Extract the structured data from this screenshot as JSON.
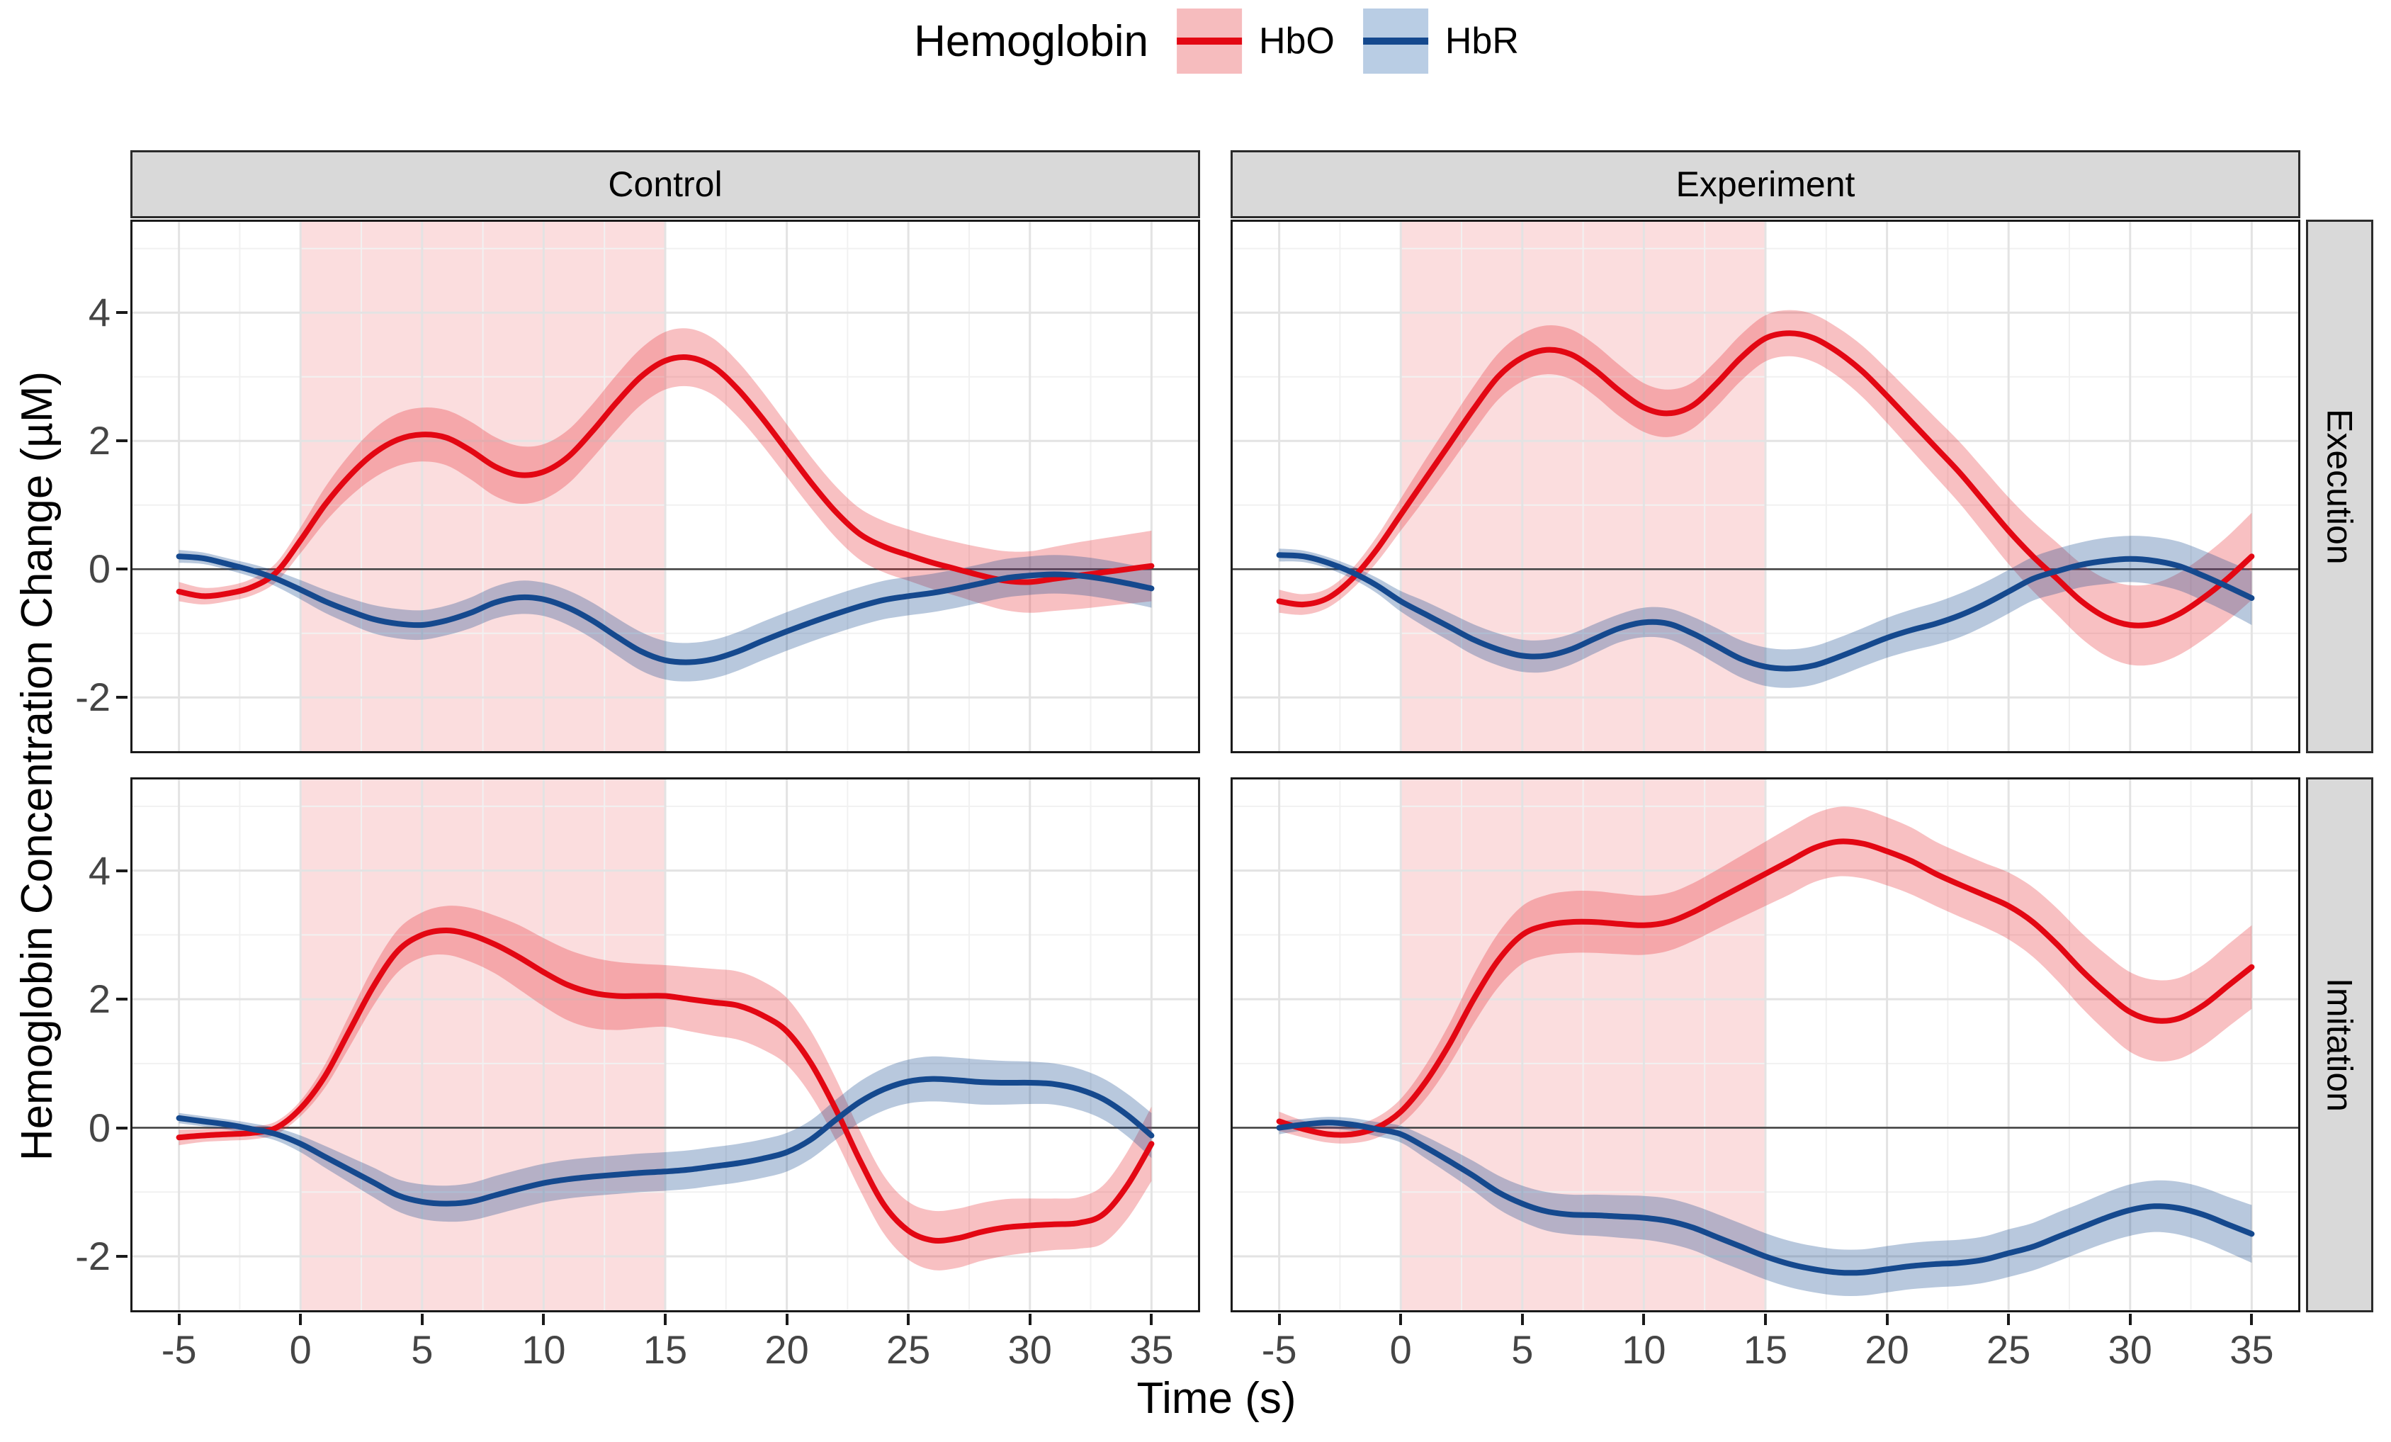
{
  "legend": {
    "title": "Hemoglobin",
    "items": [
      {
        "label": "HbO",
        "line_color": "#e30713",
        "fill_color": "#f6bcbe"
      },
      {
        "label": "HbR",
        "line_color": "#15498e",
        "fill_color": "#b9cde4"
      }
    ]
  },
  "facets": {
    "columns": [
      "Control",
      "Experiment"
    ],
    "rows": [
      "Execution",
      "Imitation"
    ]
  },
  "chart_data": {
    "type": "line",
    "x_label": "Time (s)",
    "y_label": "Hemoglobin Concentration Change (µM)",
    "xlim": [
      -7,
      37
    ],
    "ylim": [
      -2.87,
      5.45
    ],
    "x_ticks": [
      -5,
      0,
      5,
      10,
      15,
      20,
      25,
      30,
      35
    ],
    "x_minor": [
      -2.5,
      2.5,
      7.5,
      12.5,
      17.5,
      22.5,
      27.5,
      32.5
    ],
    "y_ticks": [
      4,
      2,
      0,
      -2
    ],
    "y_minor": [
      5,
      3,
      1,
      -1
    ],
    "zero_line": 0,
    "stimulus_band": {
      "from": 0,
      "to": 15,
      "fill": "rgba(231,28,35,0.15)"
    },
    "grid": {
      "major_color": "#e3e3e3",
      "minor_color": "#f1f1f1",
      "zero_color": "#404040"
    },
    "series_style": {
      "HbO": {
        "line": "#e30713",
        "fill": "rgba(231,28,35,0.28)"
      },
      "HbR": {
        "line": "#15498e",
        "fill": "rgba(21,73,142,0.30)"
      }
    },
    "t": [
      -5,
      -4,
      -3,
      -2,
      -1,
      0,
      1,
      2,
      3,
      4,
      5,
      6,
      7,
      8,
      9,
      10,
      11,
      12,
      13,
      14,
      15,
      16,
      17,
      18,
      19,
      20,
      21,
      22,
      23,
      24,
      25,
      26,
      27,
      28,
      29,
      30,
      31,
      32,
      33,
      34,
      35
    ],
    "panels": [
      {
        "row": "Execution",
        "col": "Control",
        "series": [
          {
            "name": "HbO",
            "mean": [
              -0.35,
              -0.42,
              -0.38,
              -0.28,
              -0.05,
              0.45,
              1.0,
              1.45,
              1.8,
              2.02,
              2.1,
              2.05,
              1.85,
              1.6,
              1.47,
              1.52,
              1.75,
              2.15,
              2.6,
              3.0,
              3.25,
              3.3,
              3.15,
              2.8,
              2.35,
              1.85,
              1.35,
              0.9,
              0.55,
              0.35,
              0.22,
              0.1,
              0.0,
              -0.1,
              -0.18,
              -0.2,
              -0.15,
              -0.1,
              -0.05,
              0.0,
              0.05
            ],
            "ci_halfwidth": [
              0.15,
              0.13,
              0.12,
              0.13,
              0.15,
              0.2,
              0.27,
              0.33,
              0.38,
              0.41,
              0.42,
              0.43,
              0.45,
              0.46,
              0.45,
              0.43,
              0.42,
              0.42,
              0.43,
              0.44,
              0.45,
              0.45,
              0.44,
              0.43,
              0.42,
              0.41,
              0.4,
              0.4,
              0.4,
              0.4,
              0.4,
              0.41,
              0.42,
              0.44,
              0.46,
              0.48,
              0.5,
              0.52,
              0.53,
              0.54,
              0.55
            ]
          },
          {
            "name": "HbR",
            "mean": [
              0.2,
              0.17,
              0.08,
              -0.02,
              -0.15,
              -0.32,
              -0.5,
              -0.65,
              -0.78,
              -0.85,
              -0.87,
              -0.8,
              -0.68,
              -0.52,
              -0.44,
              -0.47,
              -0.6,
              -0.8,
              -1.05,
              -1.28,
              -1.42,
              -1.45,
              -1.4,
              -1.28,
              -1.12,
              -0.97,
              -0.83,
              -0.7,
              -0.58,
              -0.48,
              -0.42,
              -0.37,
              -0.3,
              -0.22,
              -0.14,
              -0.1,
              -0.08,
              -0.1,
              -0.15,
              -0.22,
              -0.3
            ],
            "ci_halfwidth": [
              0.1,
              0.09,
              0.09,
              0.1,
              0.12,
              0.15,
              0.18,
              0.2,
              0.22,
              0.23,
              0.23,
              0.23,
              0.24,
              0.25,
              0.26,
              0.26,
              0.27,
              0.28,
              0.29,
              0.3,
              0.3,
              0.3,
              0.3,
              0.3,
              0.3,
              0.3,
              0.3,
              0.3,
              0.3,
              0.3,
              0.3,
              0.3,
              0.3,
              0.3,
              0.3,
              0.3,
              0.3,
              0.3,
              0.3,
              0.3,
              0.3
            ]
          }
        ]
      },
      {
        "row": "Execution",
        "col": "Experiment",
        "series": [
          {
            "name": "HbO",
            "mean": [
              -0.5,
              -0.55,
              -0.45,
              -0.15,
              0.3,
              0.85,
              1.4,
              1.95,
              2.5,
              3.0,
              3.3,
              3.42,
              3.35,
              3.1,
              2.78,
              2.52,
              2.43,
              2.55,
              2.9,
              3.3,
              3.6,
              3.68,
              3.6,
              3.38,
              3.08,
              2.7,
              2.3,
              1.9,
              1.5,
              1.05,
              0.6,
              0.2,
              -0.15,
              -0.5,
              -0.75,
              -0.87,
              -0.85,
              -0.7,
              -0.45,
              -0.15,
              0.2
            ],
            "ci_halfwidth": [
              0.18,
              0.16,
              0.15,
              0.16,
              0.2,
              0.25,
              0.3,
              0.33,
              0.35,
              0.36,
              0.37,
              0.38,
              0.39,
              0.4,
              0.4,
              0.38,
              0.37,
              0.36,
              0.36,
              0.36,
              0.36,
              0.36,
              0.37,
              0.38,
              0.4,
              0.42,
              0.44,
              0.46,
              0.48,
              0.5,
              0.52,
              0.54,
              0.56,
              0.58,
              0.6,
              0.62,
              0.63,
              0.64,
              0.65,
              0.66,
              0.68
            ]
          },
          {
            "name": "HbR",
            "mean": [
              0.22,
              0.2,
              0.1,
              -0.05,
              -0.25,
              -0.5,
              -0.7,
              -0.9,
              -1.1,
              -1.25,
              -1.35,
              -1.35,
              -1.25,
              -1.08,
              -0.92,
              -0.83,
              -0.85,
              -1.0,
              -1.2,
              -1.4,
              -1.52,
              -1.55,
              -1.5,
              -1.37,
              -1.22,
              -1.07,
              -0.95,
              -0.85,
              -0.72,
              -0.55,
              -0.35,
              -0.15,
              -0.03,
              0.07,
              0.13,
              0.16,
              0.13,
              0.05,
              -0.1,
              -0.27,
              -0.45
            ],
            "ci_halfwidth": [
              0.1,
              0.09,
              0.09,
              0.1,
              0.12,
              0.16,
              0.2,
              0.22,
              0.24,
              0.25,
              0.25,
              0.25,
              0.24,
              0.23,
              0.22,
              0.23,
              0.24,
              0.26,
              0.28,
              0.29,
              0.3,
              0.3,
              0.3,
              0.3,
              0.3,
              0.31,
              0.32,
              0.33,
              0.34,
              0.34,
              0.34,
              0.34,
              0.35,
              0.35,
              0.36,
              0.36,
              0.37,
              0.38,
              0.39,
              0.4,
              0.42
            ]
          }
        ]
      },
      {
        "row": "Imitation",
        "col": "Control",
        "series": [
          {
            "name": "HbO",
            "mean": [
              -0.15,
              -0.12,
              -0.1,
              -0.08,
              0.0,
              0.3,
              0.8,
              1.5,
              2.2,
              2.75,
              3.0,
              3.07,
              3.0,
              2.85,
              2.65,
              2.42,
              2.22,
              2.1,
              2.05,
              2.05,
              2.05,
              2.0,
              1.95,
              1.9,
              1.75,
              1.5,
              1.0,
              0.3,
              -0.5,
              -1.2,
              -1.6,
              -1.75,
              -1.72,
              -1.62,
              -1.55,
              -1.52,
              -1.5,
              -1.48,
              -1.35,
              -0.9,
              -0.25
            ],
            "ci_halfwidth": [
              0.12,
              0.1,
              0.1,
              0.1,
              0.1,
              0.12,
              0.18,
              0.25,
              0.3,
              0.33,
              0.35,
              0.38,
              0.42,
              0.45,
              0.5,
              0.53,
              0.55,
              0.55,
              0.53,
              0.5,
              0.48,
              0.5,
              0.52,
              0.53,
              0.53,
              0.52,
              0.5,
              0.48,
              0.46,
              0.45,
              0.45,
              0.46,
              0.46,
              0.45,
              0.44,
              0.42,
              0.4,
              0.4,
              0.45,
              0.52,
              0.58
            ]
          },
          {
            "name": "HbR",
            "mean": [
              0.15,
              0.1,
              0.05,
              -0.02,
              -0.1,
              -0.25,
              -0.45,
              -0.65,
              -0.85,
              -1.05,
              -1.15,
              -1.18,
              -1.15,
              -1.05,
              -0.95,
              -0.86,
              -0.8,
              -0.76,
              -0.73,
              -0.7,
              -0.68,
              -0.65,
              -0.6,
              -0.55,
              -0.48,
              -0.38,
              -0.18,
              0.12,
              0.4,
              0.6,
              0.72,
              0.76,
              0.74,
              0.71,
              0.7,
              0.7,
              0.68,
              0.6,
              0.45,
              0.2,
              -0.12
            ],
            "ci_halfwidth": [
              0.08,
              0.08,
              0.08,
              0.09,
              0.1,
              0.13,
              0.17,
              0.2,
              0.23,
              0.25,
              0.27,
              0.28,
              0.29,
              0.3,
              0.3,
              0.3,
              0.3,
              0.3,
              0.3,
              0.3,
              0.3,
              0.3,
              0.3,
              0.3,
              0.3,
              0.3,
              0.3,
              0.31,
              0.32,
              0.33,
              0.34,
              0.35,
              0.35,
              0.35,
              0.34,
              0.33,
              0.32,
              0.32,
              0.32,
              0.33,
              0.35
            ]
          }
        ]
      },
      {
        "row": "Imitation",
        "col": "Experiment",
        "series": [
          {
            "name": "HbO",
            "mean": [
              0.1,
              -0.02,
              -0.1,
              -0.1,
              0.0,
              0.25,
              0.7,
              1.3,
              2.0,
              2.6,
              3.0,
              3.15,
              3.2,
              3.2,
              3.17,
              3.15,
              3.2,
              3.35,
              3.55,
              3.75,
              3.95,
              4.15,
              4.35,
              4.45,
              4.42,
              4.3,
              4.15,
              3.95,
              3.78,
              3.62,
              3.45,
              3.2,
              2.85,
              2.45,
              2.1,
              1.8,
              1.67,
              1.7,
              1.9,
              2.2,
              2.5
            ],
            "ci_halfwidth": [
              0.15,
              0.13,
              0.13,
              0.14,
              0.16,
              0.2,
              0.26,
              0.32,
              0.38,
              0.42,
              0.45,
              0.47,
              0.48,
              0.48,
              0.47,
              0.46,
              0.45,
              0.45,
              0.46,
              0.48,
              0.5,
              0.52,
              0.53,
              0.54,
              0.54,
              0.53,
              0.52,
              0.5,
              0.5,
              0.5,
              0.52,
              0.54,
              0.56,
              0.58,
              0.6,
              0.62,
              0.63,
              0.63,
              0.63,
              0.64,
              0.65
            ]
          },
          {
            "name": "HbR",
            "mean": [
              0.0,
              0.05,
              0.08,
              0.05,
              -0.02,
              -0.1,
              -0.3,
              -0.52,
              -0.75,
              -1.0,
              -1.18,
              -1.3,
              -1.35,
              -1.36,
              -1.38,
              -1.4,
              -1.45,
              -1.55,
              -1.7,
              -1.85,
              -2.0,
              -2.12,
              -2.2,
              -2.25,
              -2.25,
              -2.2,
              -2.15,
              -2.12,
              -2.1,
              -2.05,
              -1.95,
              -1.85,
              -1.7,
              -1.55,
              -1.4,
              -1.28,
              -1.22,
              -1.25,
              -1.35,
              -1.5,
              -1.65
            ],
            "ci_halfwidth": [
              0.1,
              0.09,
              0.09,
              0.1,
              0.11,
              0.13,
              0.17,
              0.2,
              0.23,
              0.26,
              0.28,
              0.3,
              0.31,
              0.32,
              0.33,
              0.34,
              0.35,
              0.35,
              0.36,
              0.36,
              0.36,
              0.36,
              0.36,
              0.36,
              0.36,
              0.36,
              0.36,
              0.36,
              0.36,
              0.36,
              0.37,
              0.37,
              0.38,
              0.38,
              0.39,
              0.4,
              0.4,
              0.41,
              0.42,
              0.43,
              0.45
            ]
          }
        ]
      }
    ]
  }
}
